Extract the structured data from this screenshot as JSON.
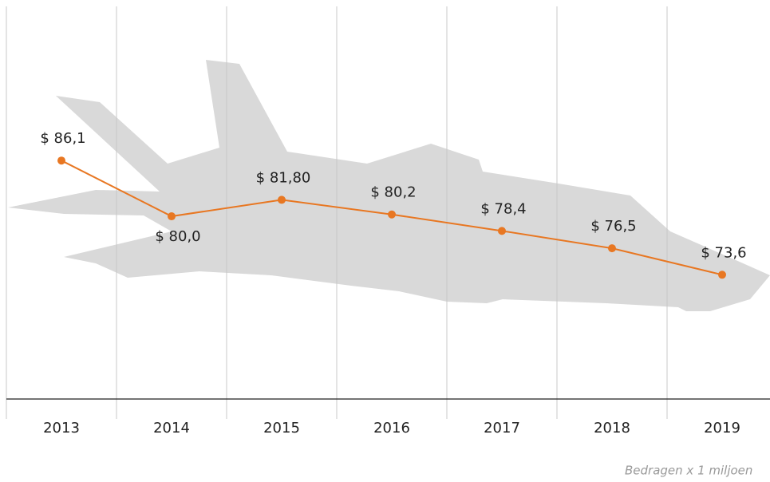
{
  "chart_data": {
    "type": "line",
    "categories": [
      "2013",
      "2014",
      "2015",
      "2016",
      "2017",
      "2018",
      "2019"
    ],
    "series": [
      {
        "color": "#e87722",
        "values": [
          86.1,
          80.0,
          81.8,
          80.2,
          78.4,
          76.5,
          73.6
        ],
        "value_labels": [
          "$ 86,1",
          "$ 80,0",
          "$ 81,80",
          "$ 80,2",
          "$ 78,4",
          "$ 76,5",
          "$ 73,6"
        ]
      }
    ],
    "ylim": [
      60,
      103.5
    ],
    "note": "Bedragen x 1 miljoen"
  }
}
